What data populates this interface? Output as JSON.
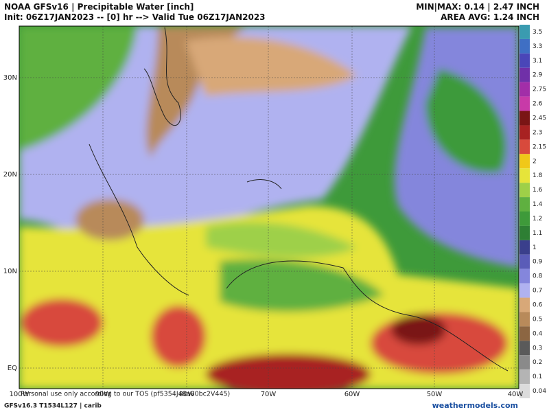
{
  "header": {
    "title": "NOAA GFSv16 | Precipitable Water [inch]",
    "init": "Init: 06Z17JAN2023 -- [0] hr --> Valid Tue 06Z17JAN2023",
    "minmax": "MIN|MAX: 0.14 | 2.47 INCH",
    "area_avg": "AREA AVG: 1.24 INCH"
  },
  "map": {
    "lat_labels": [
      "30N",
      "20N",
      "10N",
      "EQ"
    ],
    "lon_labels": [
      "100W",
      "90W",
      "80W",
      "70W",
      "60W",
      "50W",
      "40W"
    ],
    "disclaimer": "Personal use only according to our TOS (pf5354J48a80bc2V445)"
  },
  "colorbar": [
    {
      "value": 3.5,
      "color": "#3a9bb0"
    },
    {
      "value": 3.3,
      "color": "#3f6fc4"
    },
    {
      "value": 3.1,
      "color": "#4a46b8"
    },
    {
      "value": 2.9,
      "color": "#7030a8"
    },
    {
      "value": 2.75,
      "color": "#a22ea8"
    },
    {
      "value": 2.6,
      "color": "#c83aa8"
    },
    {
      "value": 2.45,
      "color": "#7a1515"
    },
    {
      "value": 2.3,
      "color": "#a82222"
    },
    {
      "value": 2.15,
      "color": "#d84a3c"
    },
    {
      "value": 2,
      "color": "#f0c818"
    },
    {
      "value": 1.8,
      "color": "#e6e43a"
    },
    {
      "value": 1.6,
      "color": "#9ed048"
    },
    {
      "value": 1.4,
      "color": "#5fb040"
    },
    {
      "value": 1.2,
      "color": "#3e9a3a"
    },
    {
      "value": 1.1,
      "color": "#2e7f34"
    },
    {
      "value": 1,
      "color": "#3a3f8c"
    },
    {
      "value": 0.9,
      "color": "#5a5cb8"
    },
    {
      "value": 0.8,
      "color": "#8486dc"
    },
    {
      "value": 0.7,
      "color": "#b0b2f0"
    },
    {
      "value": 0.6,
      "color": "#d8a878"
    },
    {
      "value": 0.5,
      "color": "#b88a5a"
    },
    {
      "value": 0.4,
      "color": "#8c6642"
    },
    {
      "value": 0.3,
      "color": "#5a5a5a"
    },
    {
      "value": 0.2,
      "color": "#8a8a8a"
    },
    {
      "value": 0.1,
      "color": "#b4b4b4"
    },
    {
      "value": 0.04,
      "color": "#dcdcdc"
    }
  ],
  "footer": {
    "left": "GFSv16.3 T1534L127 | carib",
    "right": "weathermodels.com"
  }
}
